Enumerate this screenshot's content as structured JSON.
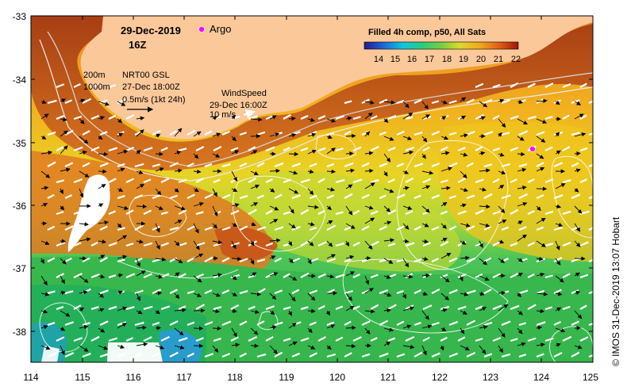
{
  "map": {
    "date": "29-Dec-2019",
    "hour": "16Z",
    "argo_label": "Argo",
    "product": "Filled 4h comp, p50, All Sats",
    "colorbar_ticks": [
      "14",
      "15",
      "16",
      "17",
      "18",
      "19",
      "20",
      "21",
      "22"
    ],
    "iso_200": "200m",
    "iso_1000": "1000m",
    "current_source": "NRT00 GSL",
    "current_date": "27-Dec 18:00Z",
    "current_scale": "0.5m/s (1kt 24h)",
    "wind_title": "WindSpeed",
    "wind_date": "29-Dec 16:00Z",
    "wind_scale": "10 m/s",
    "credit": "© IMOS 31-Dec-2019 13:07 Hobart",
    "lon_ticks": [
      "114",
      "115",
      "116",
      "117",
      "118",
      "119",
      "120",
      "121",
      "122",
      "123",
      "124",
      "125"
    ],
    "lat_ticks": [
      "-33",
      "-34",
      "-35",
      "-36",
      "-37",
      "-38"
    ],
    "colors": {
      "land": "#fbc89a",
      "sst_14": "#2a2aa0",
      "sst_16": "#10c8e0",
      "sst_18": "#5cd050",
      "sst_20": "#f0d020",
      "sst_22": "#a82010",
      "argo": "#ff00ff",
      "wind_arrow": "#ffffff",
      "current_arrow": "#000000"
    }
  }
}
